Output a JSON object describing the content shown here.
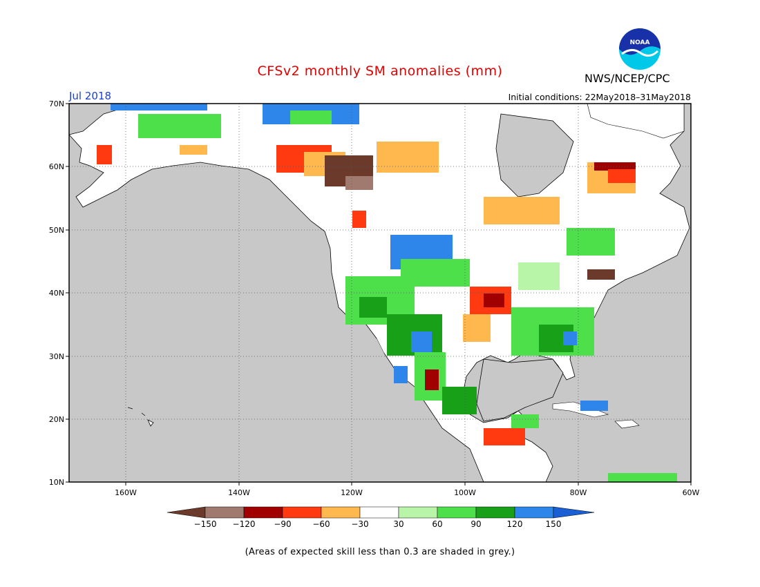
{
  "header": {
    "title": "CFSv2 monthly SM anomalies (mm)",
    "month": "Jul 2018",
    "initial_conditions": "Initial conditions: 22May2018–31May2018",
    "agency": "NWS/NCEP/CPC",
    "logo_text": "NOAA"
  },
  "map": {
    "lat_labels": [
      "70N",
      "60N",
      "50N",
      "40N",
      "30N",
      "20N",
      "10N"
    ],
    "lon_labels": [
      "160W",
      "140W",
      "120W",
      "100W",
      "80W",
      "60W"
    ],
    "lon_range": [
      -170,
      -60
    ],
    "lat_range": [
      10,
      70
    ],
    "land_color": "#ffffff",
    "no_skill_color": "#c8c8c8"
  },
  "legend": {
    "ticks": [
      "-150",
      "-120",
      "-90",
      "-60",
      "-30",
      "30",
      "60",
      "90",
      "120",
      "150"
    ],
    "colors": [
      "#6b3a2a",
      "#a07a6f",
      "#a00000",
      "#ff3a10",
      "#ffb84d",
      "#ffffff",
      "#b8f5a8",
      "#4ee04a",
      "#19a019",
      "#2f86ea",
      "#1a5fd4"
    ]
  },
  "footer": {
    "note": "(Areas of expected skill less than 0.3 are shaded in grey.)"
  }
}
